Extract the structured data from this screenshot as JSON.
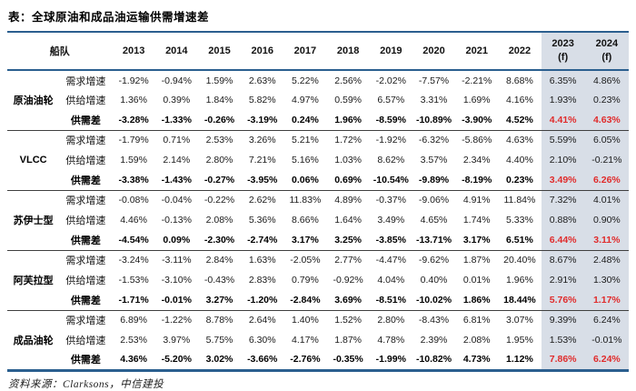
{
  "title": "表：全球原油和成品油运输供需增速差",
  "source": "资料来源：Clarksons，中信建投",
  "header": {
    "fleet": "船队",
    "years": [
      "2013",
      "2014",
      "2015",
      "2016",
      "2017",
      "2018",
      "2019",
      "2020",
      "2021",
      "2022"
    ],
    "forecast": [
      {
        "year": "2023",
        "suffix": "(f)"
      },
      {
        "year": "2024",
        "suffix": "(f)"
      }
    ]
  },
  "row_labels": {
    "demand": "需求增速",
    "supply": "供给增速",
    "gap": "供需差"
  },
  "groups": [
    {
      "name": "原油油轮",
      "demand": [
        "-1.92%",
        "-0.94%",
        "1.59%",
        "2.63%",
        "5.22%",
        "2.56%",
        "-2.02%",
        "-7.57%",
        "-2.21%",
        "8.68%",
        "6.35%",
        "4.86%"
      ],
      "supply": [
        "1.36%",
        "0.39%",
        "1.84%",
        "5.82%",
        "4.97%",
        "0.59%",
        "6.57%",
        "3.31%",
        "1.69%",
        "4.16%",
        "1.93%",
        "0.23%"
      ],
      "gap": [
        "-3.28%",
        "-1.33%",
        "-0.26%",
        "-3.19%",
        "0.24%",
        "1.96%",
        "-8.59%",
        "-10.89%",
        "-3.90%",
        "4.52%",
        "4.41%",
        "4.63%"
      ]
    },
    {
      "name": "VLCC",
      "demand": [
        "-1.79%",
        "0.71%",
        "2.53%",
        "3.26%",
        "5.21%",
        "1.72%",
        "-1.92%",
        "-6.32%",
        "-5.86%",
        "4.63%",
        "5.59%",
        "6.05%"
      ],
      "supply": [
        "1.59%",
        "2.14%",
        "2.80%",
        "7.21%",
        "5.16%",
        "1.03%",
        "8.62%",
        "3.57%",
        "2.34%",
        "4.40%",
        "2.10%",
        "-0.21%"
      ],
      "gap": [
        "-3.38%",
        "-1.43%",
        "-0.27%",
        "-3.95%",
        "0.06%",
        "0.69%",
        "-10.54%",
        "-9.89%",
        "-8.19%",
        "0.23%",
        "3.49%",
        "6.26%"
      ]
    },
    {
      "name": "苏伊士型",
      "demand": [
        "-0.08%",
        "-0.04%",
        "-0.22%",
        "2.62%",
        "11.83%",
        "4.89%",
        "-0.37%",
        "-9.06%",
        "4.91%",
        "11.84%",
        "7.32%",
        "4.01%"
      ],
      "supply": [
        "4.46%",
        "-0.13%",
        "2.08%",
        "5.36%",
        "8.66%",
        "1.64%",
        "3.49%",
        "4.65%",
        "1.74%",
        "5.33%",
        "0.88%",
        "0.90%"
      ],
      "gap": [
        "-4.54%",
        "0.09%",
        "-2.30%",
        "-2.74%",
        "3.17%",
        "3.25%",
        "-3.85%",
        "-13.71%",
        "3.17%",
        "6.51%",
        "6.44%",
        "3.11%"
      ]
    },
    {
      "name": "阿芙拉型",
      "demand": [
        "-3.24%",
        "-3.11%",
        "2.84%",
        "1.63%",
        "-2.05%",
        "2.77%",
        "-4.47%",
        "-9.62%",
        "1.87%",
        "20.40%",
        "8.67%",
        "2.48%"
      ],
      "supply": [
        "-1.53%",
        "-3.10%",
        "-0.43%",
        "2.83%",
        "0.79%",
        "-0.92%",
        "4.04%",
        "0.40%",
        "0.01%",
        "1.96%",
        "2.91%",
        "1.30%"
      ],
      "gap": [
        "-1.71%",
        "-0.01%",
        "3.27%",
        "-1.20%",
        "-2.84%",
        "3.69%",
        "-8.51%",
        "-10.02%",
        "1.86%",
        "18.44%",
        "5.76%",
        "1.17%"
      ]
    },
    {
      "name": "成品油轮",
      "demand": [
        "6.89%",
        "-1.22%",
        "8.78%",
        "2.64%",
        "1.40%",
        "1.52%",
        "2.80%",
        "-8.43%",
        "6.81%",
        "3.07%",
        "9.39%",
        "6.24%"
      ],
      "supply": [
        "2.53%",
        "3.97%",
        "5.75%",
        "6.30%",
        "4.17%",
        "1.87%",
        "4.78%",
        "2.39%",
        "2.08%",
        "1.95%",
        "1.53%",
        "-0.01%"
      ],
      "gap": [
        "4.36%",
        "-5.20%",
        "3.02%",
        "-3.66%",
        "-2.76%",
        "-0.35%",
        "-1.99%",
        "-10.82%",
        "4.73%",
        "1.12%",
        "7.86%",
        "6.24%"
      ]
    }
  ],
  "colors": {
    "accent_blue": "#2B5F8F",
    "highlight_bg": "#D8DEE7",
    "forecast_red": "#E02B2B",
    "separator": "#404040"
  }
}
